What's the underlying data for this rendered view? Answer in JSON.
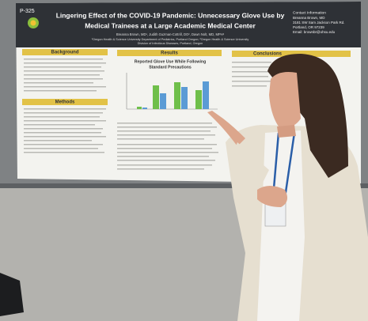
{
  "poster": {
    "id": "P-325",
    "title_line1": "Lingering Effect of the COVID-19 Pandemic: Unnecessary Glove Use by",
    "title_line2": "Medical Trainees at a Large Academic Medical Center",
    "authors": "Breanna Brown, MD¹, Judith Guzman-Cottrill, DO², Dawn Nolt, MD, MPH²",
    "affiliation1": "¹Oregon Health & Science University Department of Pediatrics, Portland Oregon; ²Oregon Health & Science University",
    "affiliation2": "Division of Infectious Diseases, Portland, Oregon",
    "contact": {
      "heading": "Contact Information",
      "name": "Breanna Brown, MD",
      "address1": "3181 SW Sam Jackson Park Rd.",
      "address2": "Portland, OR 97239",
      "email": "Email: brownbr@ohsu.edu"
    },
    "sections": [
      "Background",
      "Methods",
      "Results",
      "Conclusions"
    ],
    "chart_title_line1": "Reported Glove Use While Following",
    "chart_title_line2": "Standard Precautions"
  }
}
